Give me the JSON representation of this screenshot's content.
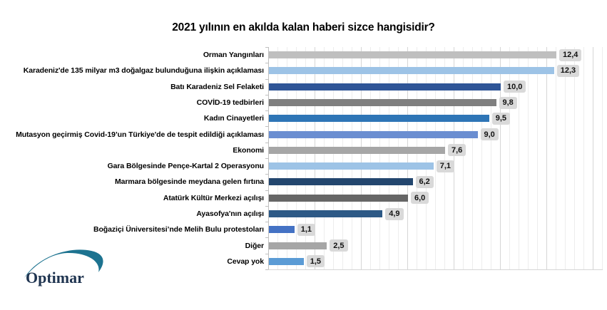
{
  "title": "2021 yılının en akılda kalan haberi sizce hangisidir?",
  "logo": {
    "text": "Optimar",
    "text_color": "#1f3450",
    "swoosh_color": "#1d7390",
    "dot_color": "#2e75b6"
  },
  "colors": {
    "background": "#ffffff",
    "value_box_bg": "#d9d9d9",
    "gridline_minor": "#ededed",
    "gridline_major": "#d6d6d6",
    "axis": "#bfbfbf"
  },
  "chart_data": {
    "type": "bar",
    "orientation": "horizontal",
    "title": "2021 yılının en akılda kalan haberi sizce hangisidir?",
    "xlabel": "",
    "ylabel": "",
    "xlim": [
      0,
      14.5
    ],
    "grid": {
      "on": true,
      "minor_step": 0.4,
      "major_step": 2
    },
    "legend": "none",
    "categories": [
      "Orman Yangınları",
      "Karadeniz'de 135 milyar m3 doğalgaz bulunduğuna ilişkin açıklaması",
      "Batı Karadeniz Sel Felaketi",
      "COVİD-19 tedbirleri",
      "Kadın Cinayetleri",
      "Mutasyon geçirmiş Covid-19’un Türkiye'de de tespit edildiği açıklaması",
      "Ekonomi",
      "Gara Bölgesinde Pençe-Kartal 2 Operasyonu",
      "Marmara bölgesinde meydana gelen fırtına",
      "Atatürk Kültür Merkezi açılışı",
      "Ayasofya'nın açılışı",
      "Boğaziçi Üniversitesi’nde Melih Bulu protestoları",
      "Diğer",
      "Cevap yok"
    ],
    "values": [
      12.4,
      12.3,
      10.0,
      9.8,
      9.5,
      9.0,
      7.6,
      7.1,
      6.2,
      6.0,
      4.9,
      1.1,
      2.5,
      1.5
    ],
    "value_labels": [
      "12,4",
      "12,3",
      "10,0",
      "9,8",
      "9,5",
      "9,0",
      "7,6",
      "7,1",
      "6,2",
      "6,0",
      "4,9",
      "1,1",
      "2,5",
      "1,5"
    ],
    "bar_colors": [
      "#bfbfbf",
      "#9dc3e6",
      "#2f5597",
      "#7f7f7f",
      "#2e75b6",
      "#6b8ed1",
      "#a6a6a6",
      "#9dc3e6",
      "#23466e",
      "#666666",
      "#2d5986",
      "#4472c4",
      "#a6a6a6",
      "#5b9bd5"
    ]
  }
}
